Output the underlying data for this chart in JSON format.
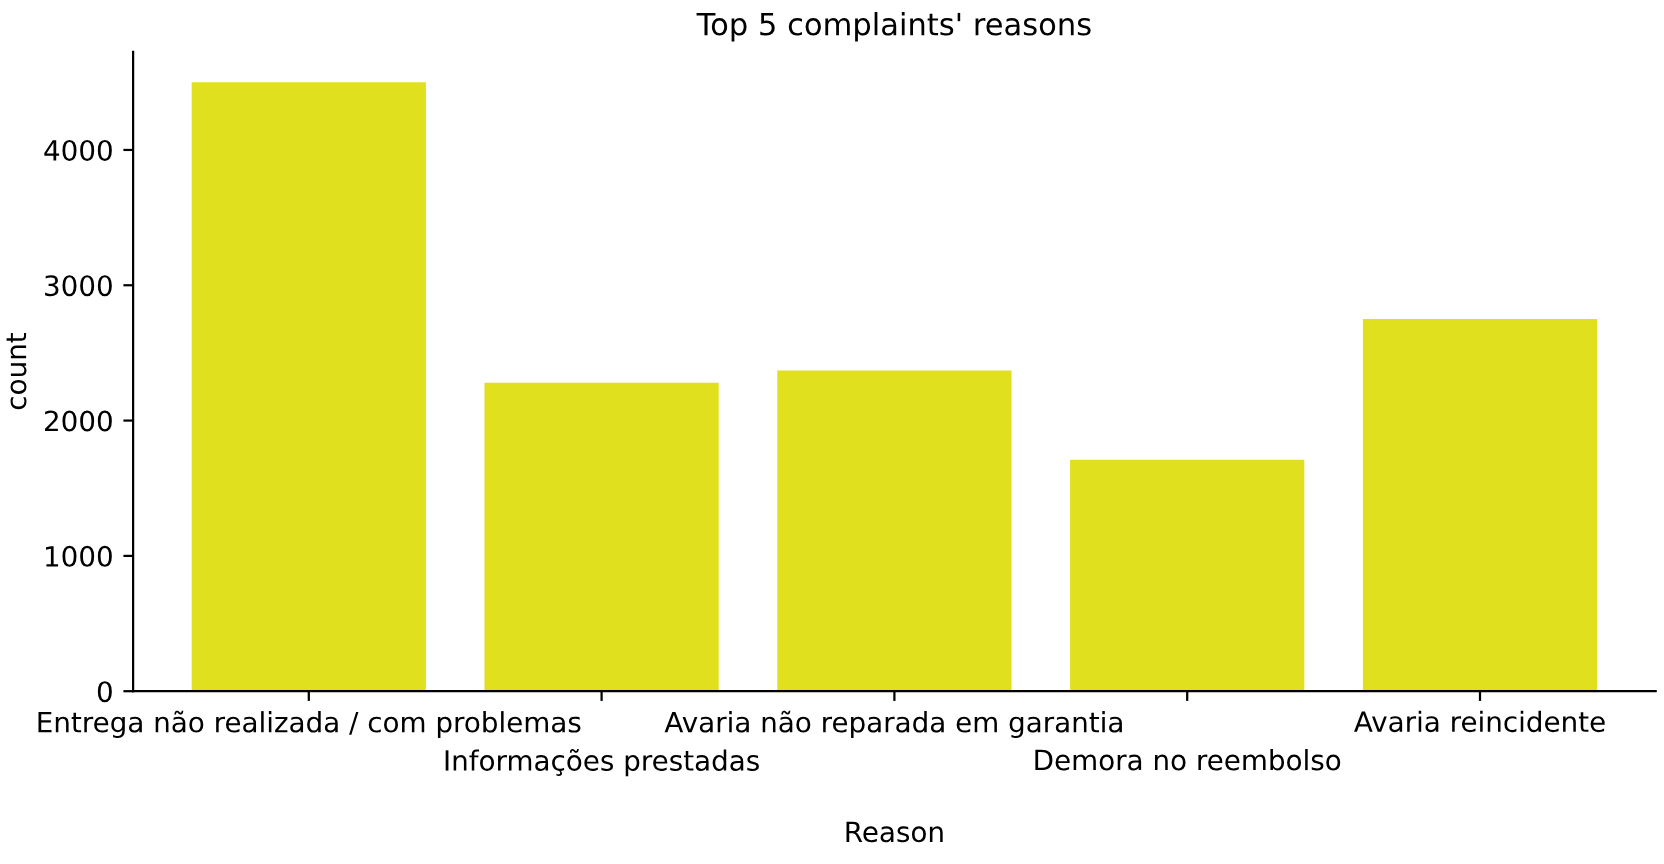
{
  "chart_data": {
    "type": "bar",
    "title": "Top 5 complaints' reasons",
    "xlabel": "Reason",
    "ylabel": "count",
    "categories": [
      "Entrega não realizada / com problemas",
      "Informações prestadas",
      "Avaria não reparada em garantia",
      "Demora no reembolso",
      "Avaria reincidente"
    ],
    "values": [
      4500,
      2280,
      2370,
      1710,
      2750
    ],
    "color": "#e0e01e",
    "ylim": [
      0,
      4725
    ],
    "yticks": [
      0,
      1000,
      2000,
      3000,
      4000
    ],
    "grid": false
  }
}
